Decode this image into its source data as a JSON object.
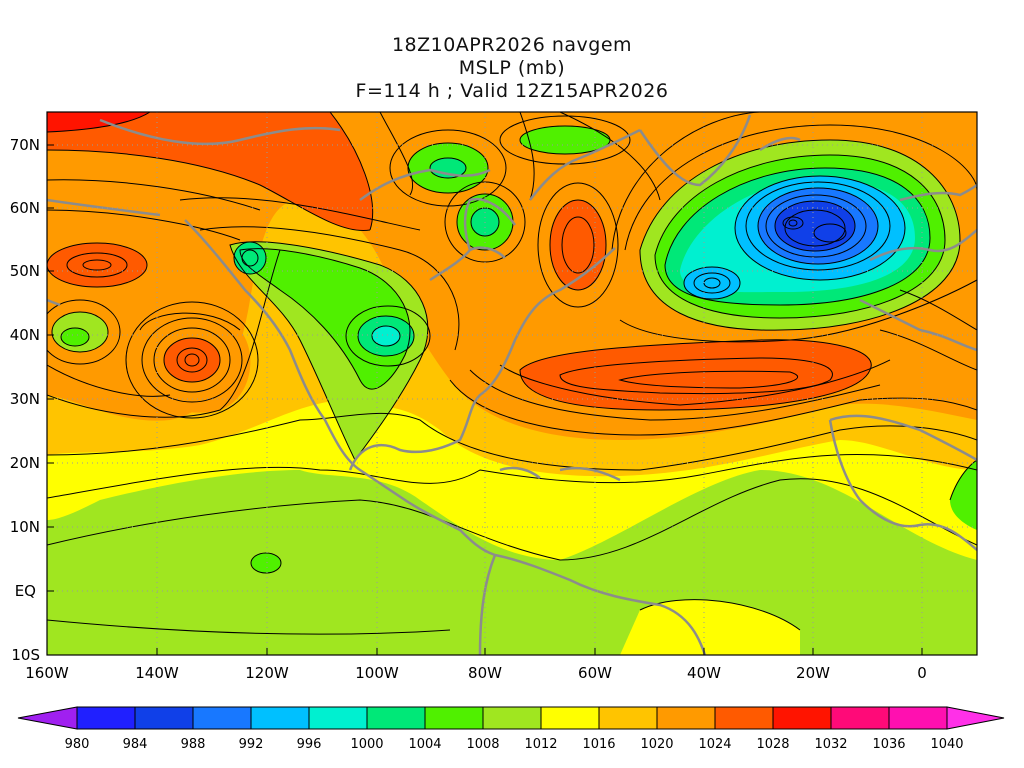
{
  "title": {
    "line1": "18Z10APR2026 navgem",
    "line2": "MSLP (mb)",
    "line3": "F=114 h ; Valid 12Z15APR2026"
  },
  "axes": {
    "lat_labels": [
      "70N",
      "60N",
      "50N",
      "40N",
      "30N",
      "20N",
      "10N",
      "EQ",
      "10S"
    ],
    "lon_labels": [
      "160W",
      "140W",
      "120W",
      "100W",
      "80W",
      "60W",
      "40W",
      "20W",
      "0"
    ]
  },
  "colorbar": {
    "labels": [
      "980",
      "984",
      "988",
      "992",
      "996",
      "1000",
      "1004",
      "1008",
      "1012",
      "1016",
      "1020",
      "1024",
      "1028",
      "1032",
      "1036",
      "1040"
    ],
    "colors": [
      "#a020f0",
      "#2020ff",
      "#1040e8",
      "#1878ff",
      "#00c0ff",
      "#00f0d0",
      "#00e878",
      "#50f000",
      "#a0e620",
      "#ffff00",
      "#ffc400",
      "#ff9a00",
      "#ff5a00",
      "#ff1400",
      "#ff0a78",
      "#ff10b0",
      "#ff30e8"
    ]
  },
  "chart_data": {
    "type": "heatmap",
    "variable": "MSLP (mb)",
    "contour_interval_mb": 2,
    "color_interval_mb": 4,
    "lat_range": [
      -10,
      75
    ],
    "lon_range": [
      -160,
      10
    ],
    "centers": [
      {
        "kind": "low",
        "lon": -20,
        "lat": 57,
        "value": 982
      },
      {
        "kind": "low",
        "lon": -39,
        "lat": 48,
        "value": 992
      },
      {
        "kind": "low",
        "lon": -98,
        "lat": 40,
        "value": 998
      },
      {
        "kind": "low",
        "lon": -87,
        "lat": 66,
        "value": 1002
      },
      {
        "kind": "low",
        "lon": -83,
        "lat": 57,
        "value": 1004
      },
      {
        "kind": "low",
        "lon": -121,
        "lat": 52,
        "value": 1006
      },
      {
        "kind": "low",
        "lon": -152,
        "lat": 39,
        "value": 1010
      },
      {
        "kind": "low",
        "lon": -117,
        "lat": 4,
        "value": 1010
      },
      {
        "kind": "low",
        "lon": -65,
        "lat": 68,
        "value": 1010
      },
      {
        "kind": "high",
        "lon": -133,
        "lat": 36,
        "value": 1026
      },
      {
        "kind": "high",
        "lon": -35,
        "lat": 34,
        "value": 1028
      },
      {
        "kind": "high",
        "lon": -153,
        "lat": 51,
        "value": 1024
      },
      {
        "kind": "high",
        "lon": -62,
        "lat": 52,
        "value": 1026
      },
      {
        "kind": "high",
        "lon": -150,
        "lat": 73,
        "value": 1030
      },
      {
        "kind": "high",
        "lon": -120,
        "lat": 67,
        "value": 1028
      }
    ]
  }
}
